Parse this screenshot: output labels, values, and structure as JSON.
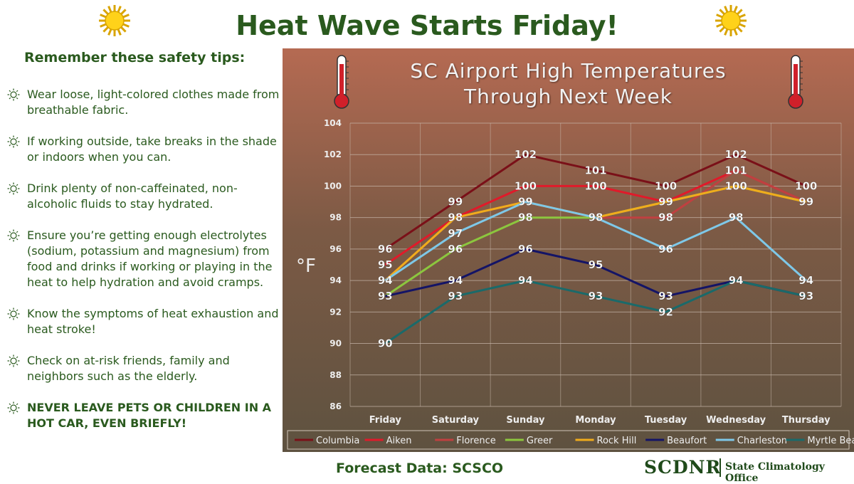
{
  "page": {
    "title": "Heat Wave Starts Friday!",
    "tips_heading": "Remember these safety tips:",
    "tips": [
      {
        "text": "Wear loose, light-colored clothes made from breathable fabric.",
        "bold": false
      },
      {
        "text": "If working outside, take breaks in the shade or indoors when you can.",
        "bold": false
      },
      {
        "text": "Drink plenty of non-caffeinated, non-alcoholic fluids to stay hydrated.",
        "bold": false
      },
      {
        "text": "Ensure you’re getting enough electrolytes (sodium, potassium and magnesium) from food and drinks if working or playing in the heat to help hydration and avoid cramps.",
        "bold": false
      },
      {
        "text": "Know the symptoms of heat exhaustion and heat stroke!",
        "bold": false
      },
      {
        "text": "Check on at-risk friends, family and neighbors such as the elderly.",
        "bold": false
      },
      {
        "text": "NEVER LEAVE PETS OR CHILDREN IN A HOT CAR, EVEN BRIEFLY!",
        "bold": true
      }
    ],
    "footer_left": "Forecast Data: SCSCO",
    "logo_main": "SCDNR",
    "logo_sub": "State Climatology Office",
    "icons": {
      "sun": "sun-icon",
      "thermometer": "thermometer-icon",
      "tip_bullet": "sun-outline-icon"
    }
  },
  "chart_data": {
    "type": "line",
    "title": "SC Airport High Temperatures Through Next Week",
    "title_lines": [
      "SC Airport High Temperatures",
      "Through Next Week"
    ],
    "ylabel": "°F",
    "xlabel": "",
    "categories": [
      "Friday",
      "Saturday",
      "Sunday",
      "Monday",
      "Tuesday",
      "Wednesday",
      "Thursday"
    ],
    "ylim": [
      86,
      104
    ],
    "yticks": [
      86,
      88,
      90,
      92,
      94,
      96,
      98,
      100,
      102,
      104
    ],
    "grid": true,
    "legend_position": "bottom",
    "series": [
      {
        "name": "Columbia",
        "color": "#7a1018",
        "values": [
          96,
          99,
          102,
          101,
          100,
          102,
          100
        ]
      },
      {
        "name": "Aiken",
        "color": "#e01a2a",
        "values": [
          95,
          98,
          100,
          100,
          99,
          101,
          99
        ]
      },
      {
        "name": "Florence",
        "color": "#c04040",
        "values": [
          94,
          98,
          99,
          98,
          98,
          101,
          99
        ]
      },
      {
        "name": "Greer",
        "color": "#8cc63e",
        "values": [
          93,
          96,
          98,
          98,
          99,
          100,
          99
        ]
      },
      {
        "name": "Rock Hill",
        "color": "#f0ac1c",
        "values": [
          94,
          98,
          99,
          98,
          99,
          100,
          99
        ]
      },
      {
        "name": "Beaufort",
        "color": "#141466",
        "values": [
          93,
          94,
          96,
          95,
          93,
          94,
          93
        ]
      },
      {
        "name": "Charleston",
        "color": "#7ec8e8",
        "values": [
          94,
          97,
          99,
          98,
          96,
          98,
          94
        ]
      },
      {
        "name": "Myrtle Beach",
        "color": "#1a6a6a",
        "values": [
          90,
          93,
          94,
          93,
          92,
          94,
          93
        ]
      }
    ]
  }
}
